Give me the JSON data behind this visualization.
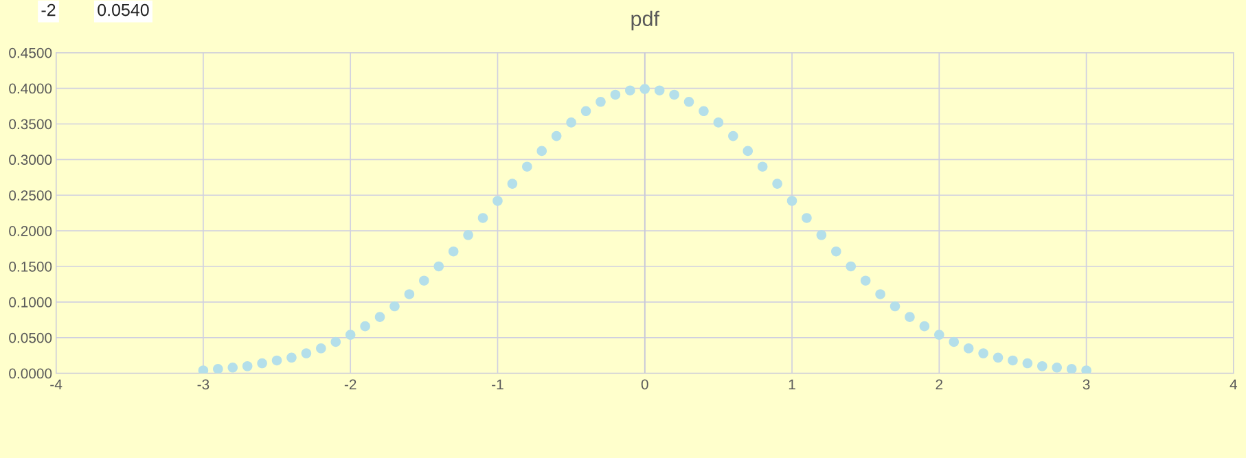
{
  "chart_data": {
    "type": "scatter",
    "title": "pdf",
    "annotations": [
      "-2",
      "0.0540"
    ],
    "x": [
      -3,
      -2.9,
      -2.8,
      -2.7,
      -2.6,
      -2.5,
      -2.4,
      -2.3,
      -2.2,
      -2.1,
      -2,
      -1.9,
      -1.8,
      -1.7,
      -1.6,
      -1.5,
      -1.4,
      -1.3,
      -1.2,
      -1.1,
      -1,
      -0.9,
      -0.8,
      -0.7,
      -0.6,
      -0.5,
      -0.4,
      -0.3,
      -0.2,
      -0.1,
      0,
      0.1,
      0.2,
      0.3,
      0.4,
      0.5,
      0.6,
      0.7,
      0.8,
      0.9,
      1,
      1.1,
      1.2,
      1.3,
      1.4,
      1.5,
      1.6,
      1.7,
      1.8,
      1.9,
      2,
      2.1,
      2.2,
      2.3,
      2.4,
      2.5,
      2.6,
      2.7,
      2.8,
      2.9,
      3
    ],
    "series": [
      {
        "color": "#b4dfea",
        "values": [
          0.004,
          0.006,
          0.008,
          0.01,
          0.014,
          0.018,
          0.022,
          0.028,
          0.035,
          0.044,
          0.054,
          0.066,
          0.079,
          0.094,
          0.111,
          0.13,
          0.15,
          0.171,
          0.194,
          0.218,
          0.242,
          0.266,
          0.29,
          0.312,
          0.333,
          0.352,
          0.368,
          0.381,
          0.391,
          0.397,
          0.399,
          0.397,
          0.391,
          0.381,
          0.368,
          0.352,
          0.333,
          0.312,
          0.29,
          0.266,
          0.242,
          0.218,
          0.194,
          0.171,
          0.15,
          0.13,
          0.111,
          0.094,
          0.079,
          0.066,
          0.054,
          0.044,
          0.035,
          0.028,
          0.022,
          0.018,
          0.014,
          0.01,
          0.008,
          0.006,
          0.004
        ]
      }
    ],
    "xlim": [
      -4,
      4
    ],
    "xticks": [
      -4,
      -3,
      -2,
      -1,
      0,
      1,
      2,
      3,
      4
    ],
    "ylim": [
      0,
      0.45
    ],
    "yticks": [
      {
        "value": 0,
        "label": "0.0000"
      },
      {
        "value": 0.05,
        "label": "0.0500"
      },
      {
        "value": 0.1,
        "label": "0.1000"
      },
      {
        "value": 0.15,
        "label": "0.1500"
      },
      {
        "value": 0.2,
        "label": "0.2000"
      },
      {
        "value": 0.25,
        "label": "0.2500"
      },
      {
        "value": 0.3,
        "label": "0.3000"
      },
      {
        "value": 0.35,
        "label": "0.3500"
      },
      {
        "value": 0.4,
        "label": "0.4000"
      },
      {
        "value": 0.45,
        "label": "0.4500"
      }
    ],
    "grid": true,
    "marker": "circle"
  }
}
